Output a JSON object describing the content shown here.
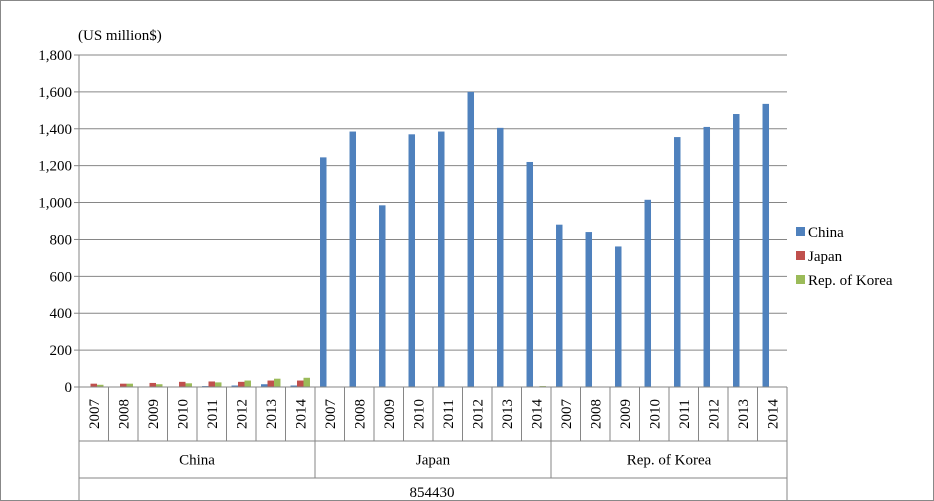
{
  "chart_data": {
    "type": "bar",
    "unit_label": "(US million$)",
    "ylim": [
      0,
      1800
    ],
    "yticks": [
      0,
      200,
      400,
      600,
      800,
      1000,
      1200,
      1400,
      1600,
      1800
    ],
    "ytick_labels": [
      "0",
      "200",
      "400",
      "600",
      "800",
      "1,000",
      "1,200",
      "1,400",
      "1,600",
      "1,800"
    ],
    "grid": true,
    "legend_position": "right",
    "groups": [
      "China",
      "Japan",
      "Rep. of Korea"
    ],
    "years": [
      "2007",
      "2008",
      "2009",
      "2010",
      "2011",
      "2012",
      "2013",
      "2014"
    ],
    "bottom_label": "854430",
    "series": [
      {
        "name": "China",
        "color": "#4F81BD",
        "values": [
          [
            0,
            0,
            0,
            0,
            5,
            8,
            15,
            8
          ],
          [
            1245,
            1385,
            985,
            1370,
            1385,
            1600,
            1405,
            1220
          ],
          [
            880,
            840,
            762,
            1015,
            1355,
            1410,
            1480,
            1535
          ]
        ]
      },
      {
        "name": "Japan",
        "color": "#C0504D",
        "values": [
          [
            18,
            18,
            22,
            28,
            30,
            28,
            35,
            35
          ],
          [
            0,
            0,
            0,
            0,
            0,
            0,
            0,
            0
          ],
          [
            0,
            0,
            0,
            0,
            0,
            0,
            0,
            0
          ]
        ]
      },
      {
        "name": "Rep. of Korea",
        "color": "#9BBB59",
        "values": [
          [
            12,
            18,
            15,
            20,
            25,
            35,
            45,
            50
          ],
          [
            0,
            0,
            0,
            0,
            0,
            0,
            0,
            5
          ],
          [
            0,
            0,
            0,
            0,
            0,
            0,
            0,
            0
          ]
        ]
      }
    ]
  }
}
